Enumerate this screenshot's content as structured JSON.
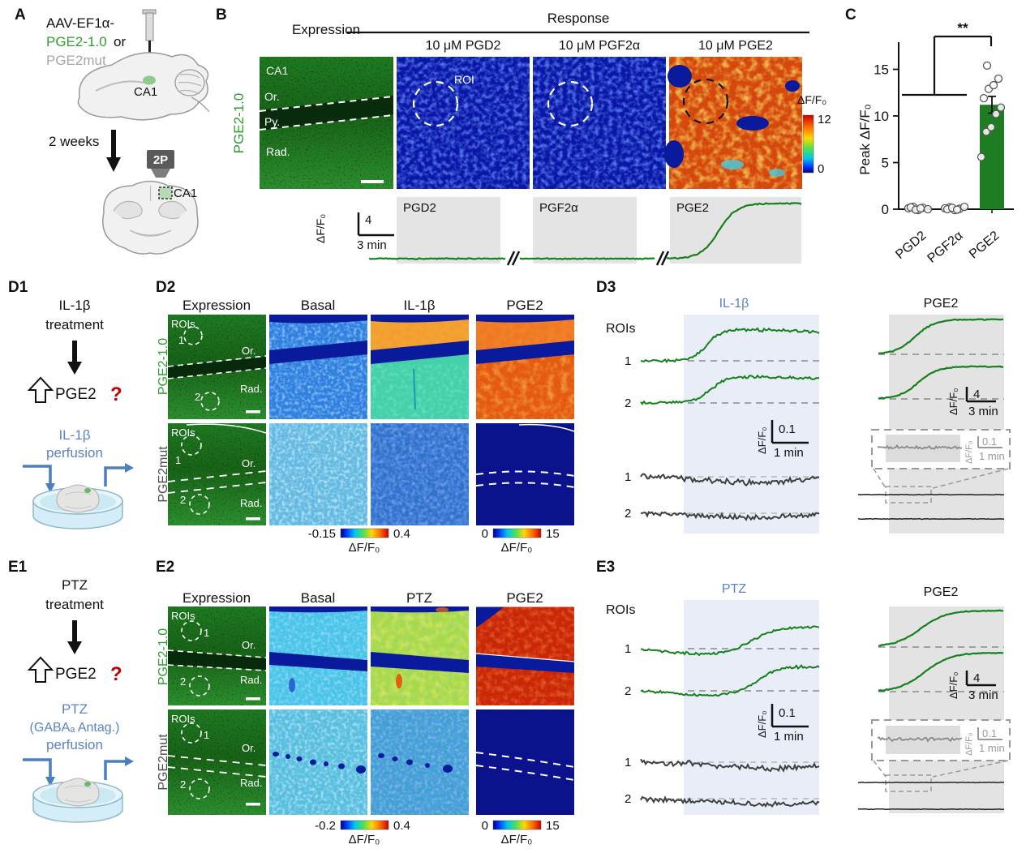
{
  "common": {
    "dff": "ΔF/F₀",
    "or": "Or.",
    "rad": "Rad.",
    "py": "Py.",
    "ca1": "CA1",
    "roi": "ROI",
    "rois": "ROIs",
    "n1": "1",
    "n2": "2"
  },
  "panelA": {
    "label": "A",
    "line1": "AAV-EF1α-",
    "line2_green": "PGE2-1.0",
    "line2_rest": "or",
    "line3": "PGE2mut",
    "ca1": "CA1",
    "weeks": "2 weeks",
    "scope": "2P",
    "ca1_coronal": "CA1"
  },
  "panelB": {
    "label": "B",
    "expression": "Expression",
    "response": "Response",
    "cols": [
      "10 μM PGD2",
      "10 μM PGF2α",
      "10 μM PGE2"
    ],
    "side_label": "PGE2-1.0",
    "roi": "ROI",
    "colorbar": {
      "title": "ΔF/F₀",
      "max": "12",
      "min": "0"
    },
    "scale": {
      "dff": "ΔF/F₀",
      "v": "4",
      "h": "3 min"
    },
    "trace_labels": [
      "PGD2",
      "PGF2α",
      "PGE2"
    ]
  },
  "panelC": {
    "label": "C",
    "sig": "**"
  },
  "chart_data": {
    "type": "bar",
    "categories": [
      "PGD2",
      "PGF2α",
      "PGE2"
    ],
    "values": [
      0.05,
      0.05,
      11.2
    ],
    "errors": [
      0.12,
      0.12,
      0.9
    ],
    "points": [
      [
        0.1,
        0.25,
        -0.1,
        0.15,
        0.0,
        0.2,
        -0.05,
        0.1
      ],
      [
        0.1,
        0.2,
        -0.1,
        0.05,
        0.25,
        0.0,
        0.15,
        -0.05
      ],
      [
        5.6,
        8.3,
        8.8,
        10.2,
        10.9,
        11.9,
        12.9,
        13.3,
        14.0,
        15.4
      ]
    ],
    "yticks": [
      0,
      5,
      10,
      15
    ],
    "ylim": [
      0,
      17.5
    ],
    "ylabel": "Peak ΔF/F₀",
    "xlabel": "",
    "legend": "none",
    "grid": false,
    "significance": "**",
    "bar_color": "#1e7d22"
  },
  "panelD1": {
    "label": "D1",
    "l1": "IL-1β",
    "l2": "treatment",
    "pge2": "PGE2",
    "q": "?",
    "p1": "IL-1β",
    "p2": "perfusion"
  },
  "panelD2": {
    "label": "D2",
    "headers": [
      "Expression",
      "Basal",
      "IL-1β",
      "PGE2"
    ],
    "row1": "PGE2-1.0",
    "row2": "PGE2mut",
    "cb1": {
      "min": "-0.15",
      "max": "0.4",
      "title": "ΔF/F₀"
    },
    "cb2": {
      "min": "0",
      "max": "15",
      "title": "ΔF/F₀"
    }
  },
  "panelD3": {
    "label": "D3",
    "rois": "ROIs",
    "stim": "IL-1β",
    "pge2_header": "PGE2",
    "scale_small": {
      "dff": "ΔF/F₀",
      "v": "0.1",
      "h": "1 min"
    },
    "scale_big": {
      "dff": "ΔF/F₀",
      "v": "4",
      "h": "3 min"
    },
    "inset_scale": {
      "dff": "ΔF/F₀",
      "v": "0.1",
      "h": "1 min"
    }
  },
  "panelE1": {
    "label": "E1",
    "l1": "PTZ",
    "l2": "treatment",
    "pge2": "PGE2",
    "q": "?",
    "p1": "PTZ",
    "p2": "(GABAₐ Antag.)",
    "p3": "perfusion"
  },
  "panelE2": {
    "label": "E2",
    "headers": [
      "Expression",
      "Basal",
      "PTZ",
      "PGE2"
    ],
    "row1": "PGE2-1.0",
    "row2": "PGE2mut",
    "cb1": {
      "min": "-0.2",
      "max": "0.4",
      "title": "ΔF/F₀"
    },
    "cb2": {
      "min": "0",
      "max": "15",
      "title": "ΔF/F₀"
    }
  },
  "panelE3": {
    "label": "E3",
    "rois": "ROIs",
    "stim": "PTZ",
    "pge2_header": "PGE2",
    "scale_small": {
      "dff": "ΔF/F₀",
      "v": "0.1",
      "h": "1 min"
    },
    "scale_big": {
      "dff": "ΔF/F₀",
      "v": "4",
      "h": "3 min"
    },
    "inset_scale": {
      "dff": "ΔF/F₀",
      "v": "0.1",
      "h": "1 min"
    }
  }
}
